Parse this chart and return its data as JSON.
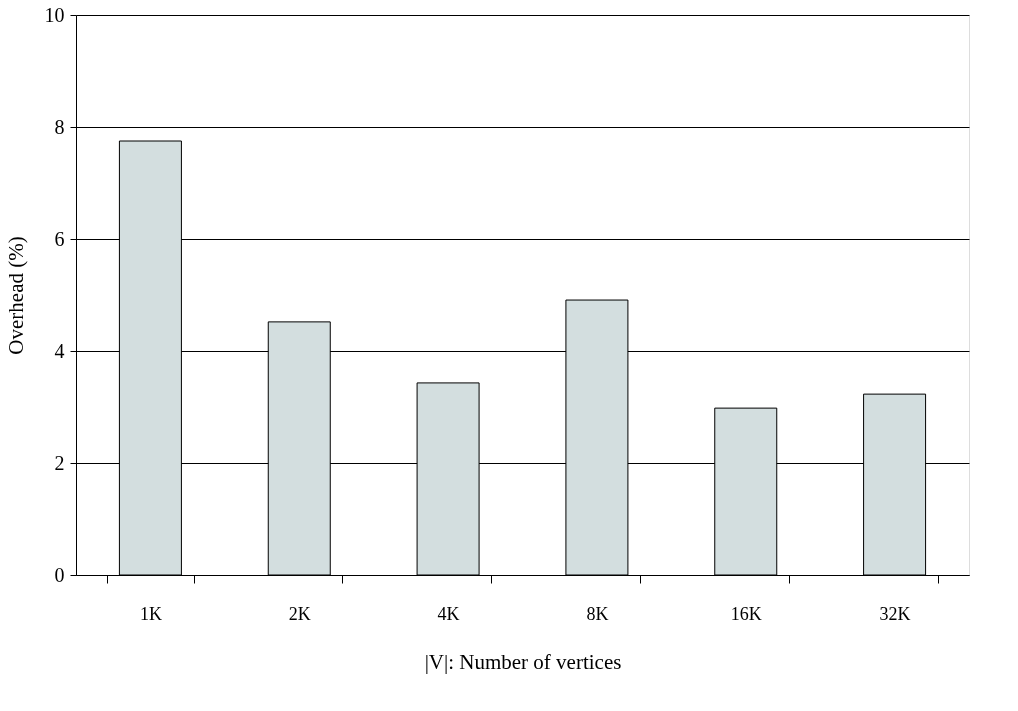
{
  "chart_data": {
    "type": "bar",
    "xlabel": "|V|: Number of vertices",
    "ylabel": "Overhead (%)",
    "categories": [
      "1K",
      "2K",
      "4K",
      "8K",
      "16K",
      "32K"
    ],
    "values": [
      7.75,
      4.52,
      3.43,
      4.91,
      2.98,
      3.23
    ],
    "color": "#d3dedf",
    "ylim": [
      0,
      10
    ],
    "yticks": [
      0,
      2,
      4,
      6,
      8,
      10
    ],
    "grid": "y"
  }
}
